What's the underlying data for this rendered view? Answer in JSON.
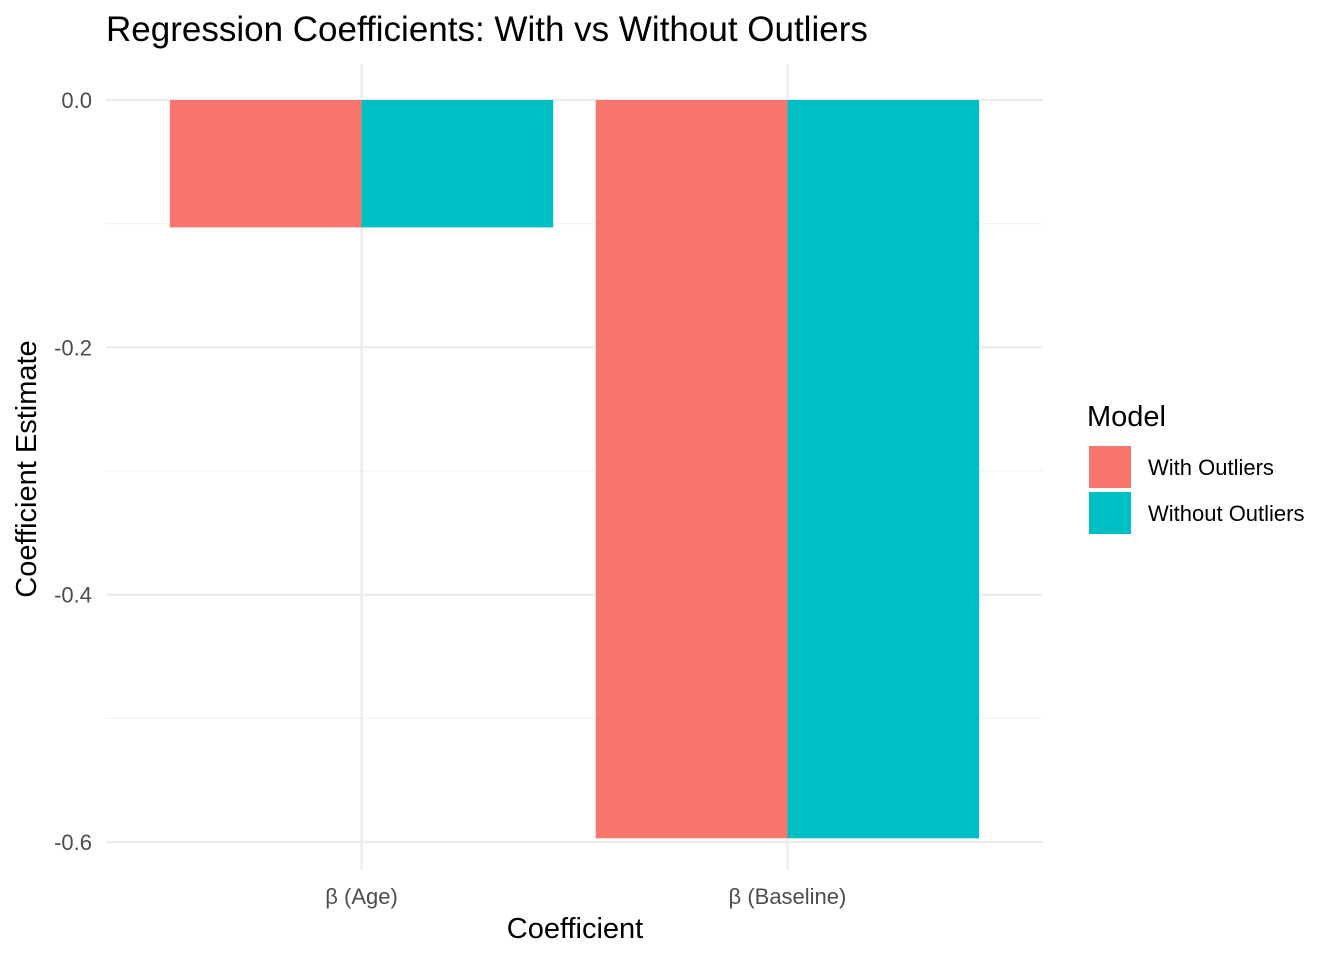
{
  "chart_data": {
    "type": "bar",
    "title": "Regression Coefficients: With vs Without Outliers",
    "xlabel": "Coefficient",
    "ylabel": "Coefficient Estimate",
    "categories": [
      "β (Age)",
      "β (Baseline)"
    ],
    "series": [
      {
        "name": "With Outliers",
        "color": "#F8766D",
        "values": [
          -0.103,
          -0.597
        ]
      },
      {
        "name": "Without Outliers",
        "color": "#00BFC4",
        "values": [
          -0.103,
          -0.597
        ]
      }
    ],
    "ylim": [
      -0.6,
      0.0
    ],
    "yticks": [
      0.0,
      -0.2,
      -0.4,
      -0.6
    ],
    "ytick_labels": [
      "0.0",
      "-0.2",
      "-0.4",
      "-0.6"
    ],
    "grid": true,
    "legend": {
      "title": "Model",
      "position": "right"
    }
  }
}
